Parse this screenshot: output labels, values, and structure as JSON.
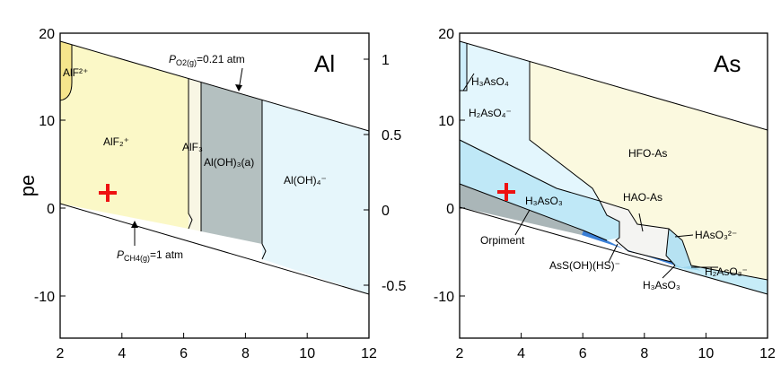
{
  "panels": [
    {
      "id": "al",
      "element": "Al",
      "x_ticks": [
        "2",
        "4",
        "6",
        "8",
        "10",
        "12"
      ],
      "y_ticks": [
        "20",
        "10",
        "0",
        "-10"
      ],
      "y_label": "pe",
      "right_ticks": [
        "1",
        "0.5",
        "0",
        "-0.5"
      ],
      "fields": [
        {
          "key": "alf2p",
          "label": "AlF²⁺",
          "color": "#f6e58c"
        },
        {
          "key": "alf2",
          "label": "AlF₂⁺",
          "color": "#fbf8c7"
        },
        {
          "key": "alf3",
          "label": "AlF₃",
          "color": "#f8f6e4"
        },
        {
          "key": "aloh3",
          "label": "Al(OH)₃(a)",
          "color": "#b4c0c0"
        },
        {
          "key": "aloh4",
          "label": "Al(OH)₄⁻",
          "color": "#e6f6fb"
        }
      ],
      "annotations": [
        {
          "key": "o2",
          "label": "PO2(g)=0.21 atm"
        },
        {
          "key": "ch4",
          "label": "PCH4(g)=1 atm"
        }
      ]
    },
    {
      "id": "as",
      "element": "As",
      "x_ticks": [
        "2",
        "4",
        "6",
        "8",
        "10",
        "12"
      ],
      "y_ticks": [
        "20",
        "10",
        "0",
        "-10"
      ],
      "fields": [
        {
          "key": "h3aso4",
          "label": "H₃AsO₄",
          "color": "#cdeefb"
        },
        {
          "key": "h2aso4",
          "label": "H₂AsO₄⁻",
          "color": "#e3f6fd"
        },
        {
          "key": "hfo",
          "label": "HFO-As",
          "color": "#fbf9df"
        },
        {
          "key": "h3aso3",
          "label": "H₃AsO₃",
          "color": "#bfe8f7"
        },
        {
          "key": "hao",
          "label": "HAO-As",
          "color": "#f4f4f2"
        },
        {
          "key": "orp",
          "label": "Orpiment",
          "color": "#aab6b8"
        },
        {
          "key": "ass",
          "label": "AsS(OH)(HS)⁻",
          "color": "#3a7fd6"
        },
        {
          "key": "h3aso3b",
          "label": "H₃AsO₃",
          "color": "#9ed7ef"
        },
        {
          "key": "haso3",
          "label": "HAsO₃²⁻",
          "color": "#b6e2f2"
        },
        {
          "key": "h2aso3",
          "label": "H₂AsO₃⁻",
          "color": "#c6ecf8"
        }
      ]
    }
  ],
  "marker_color": "#ee1111"
}
